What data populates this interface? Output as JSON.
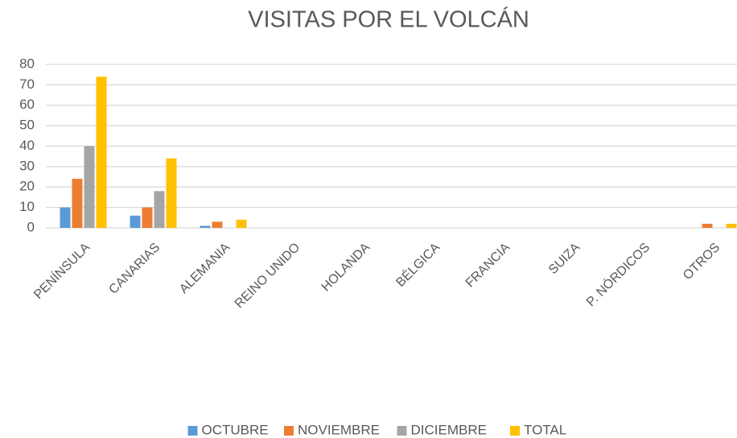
{
  "chart_data": {
    "type": "bar",
    "title": "VISITAS POR EL VOLCÁN",
    "categories": [
      "PENÍNSULA",
      "CANARIAS",
      "ALEMANIA",
      "REINO UNIDO",
      "HOLANDA",
      "BÉLGICA",
      "FRANCIA",
      "SUIZA",
      "P. NÓRDICOS",
      "OTROS"
    ],
    "series": [
      {
        "name": "OCTUBRE",
        "color": "#5b9bd5",
        "values": [
          10,
          6,
          1,
          0,
          0,
          0,
          0,
          0,
          0,
          0
        ]
      },
      {
        "name": "NOVIEMBRE",
        "color": "#ed7d31",
        "values": [
          24,
          10,
          3,
          0,
          0,
          0,
          0,
          0,
          0,
          2
        ]
      },
      {
        "name": "DICIEMBRE",
        "color": "#a5a5a5",
        "values": [
          40,
          18,
          0,
          0,
          0,
          0,
          0,
          0,
          0,
          0
        ]
      },
      {
        "name": "TOTAL",
        "color": "#ffc000",
        "values": [
          74,
          34,
          4,
          0,
          0,
          0,
          0,
          0,
          0,
          2
        ]
      }
    ],
    "ylim": [
      0,
      80
    ],
    "yticks": [
      0,
      10,
      20,
      30,
      40,
      50,
      60,
      70,
      80
    ],
    "grid": true,
    "legend": "bottom"
  }
}
